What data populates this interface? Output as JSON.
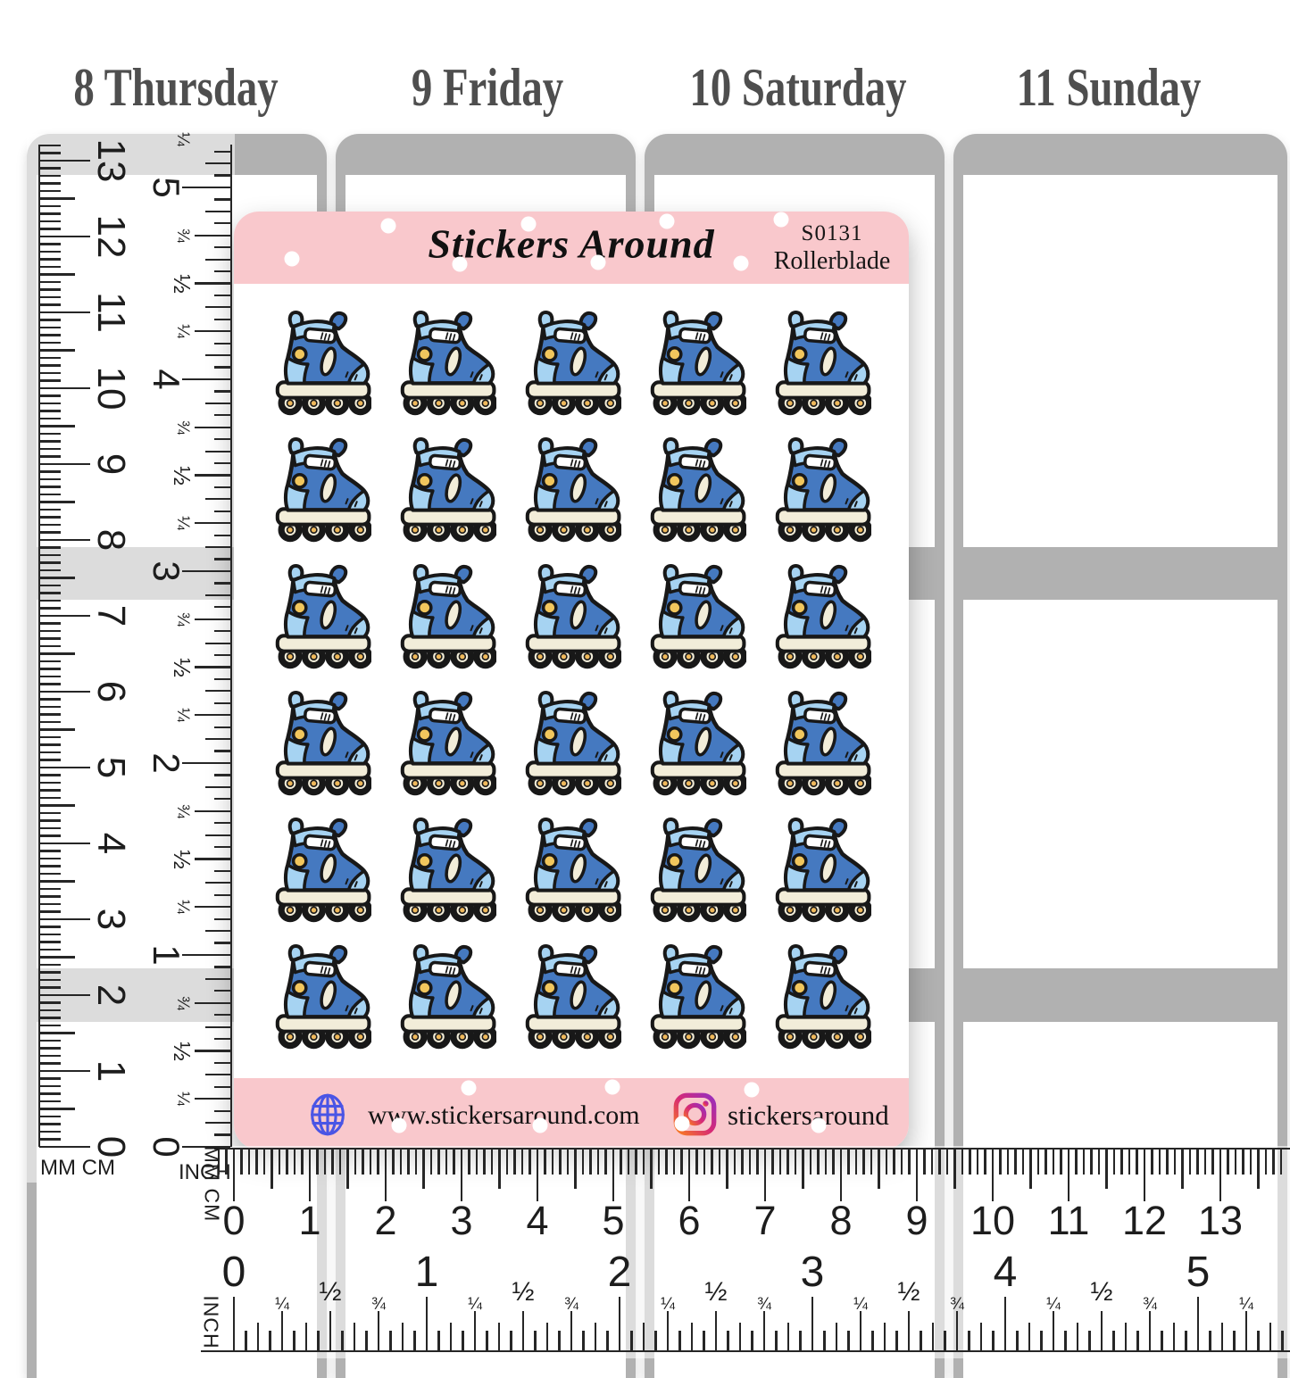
{
  "planner": {
    "day_headers": [
      "8 Thursday",
      "9 Friday",
      "10 Saturday",
      "11 Sunday"
    ]
  },
  "sticker_sheet": {
    "brand": "Stickers Around",
    "sku": "S0131",
    "product_name": "Rollerblade",
    "grid": {
      "rows": 6,
      "columns": 5,
      "sticker_count": 30,
      "icon": "rollerblade-inline-skate"
    },
    "footer": {
      "website": "www.stickersaround.com",
      "instagram_handle": "stickersaround",
      "website_icon": "globe-icon",
      "instagram_icon": "instagram-icon"
    }
  },
  "rulers": {
    "fraction_labels": [
      "¼",
      "½",
      "¾"
    ],
    "vertical_cm": {
      "unit_label": "MM CM",
      "numbers": [
        0,
        1,
        2,
        3,
        4,
        5,
        6,
        7,
        8,
        9,
        10,
        11,
        12,
        13
      ]
    },
    "vertical_inch": {
      "unit_label": "INCH",
      "numbers": [
        0,
        1,
        2,
        3,
        4,
        5
      ]
    },
    "horizontal_cm": {
      "unit_label": "MM CM",
      "numbers": [
        0,
        1,
        2,
        3,
        4,
        5,
        6,
        7,
        8,
        9,
        10,
        11,
        12,
        13
      ]
    },
    "horizontal_inch": {
      "unit_label": "INCH",
      "numbers": [
        0,
        1,
        2,
        3,
        4,
        5
      ]
    }
  },
  "colors": {
    "sheet_pink": "#f9c8cc",
    "planner_gray": "#b1b1b1",
    "day_text": "#4e4e4e",
    "boot_blue": "#4579c0",
    "light_blue": "#a6d3f2",
    "cream": "#f2edd9",
    "wheel_hub_yellow": "#efb95c",
    "accent_yellow": "#f1c65d",
    "globe_blue": "#4a55e5",
    "instagram_gradient": [
      "#962fbf",
      "#d62976",
      "#fa7e1e"
    ]
  }
}
